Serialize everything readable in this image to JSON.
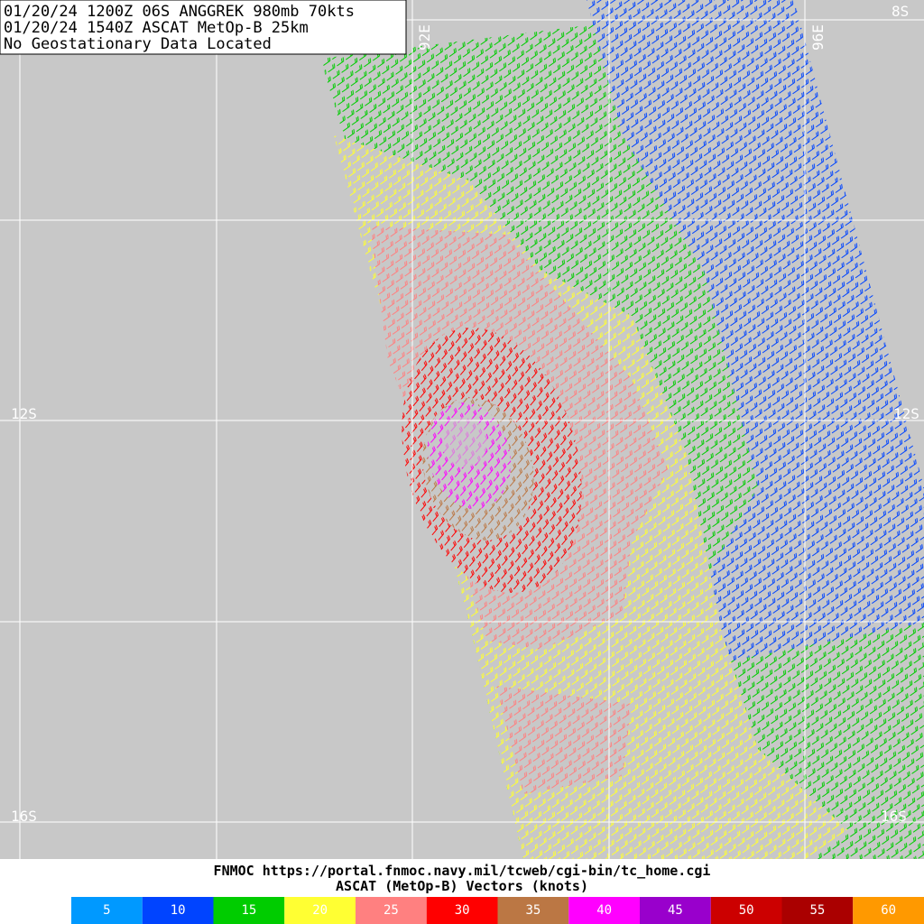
{
  "header": {
    "line1": "01/20/24 1200Z  06S ANGGREK 980mb 70kts",
    "line2": "01/20/24 1540Z  ASCAT MetOp-B 25km",
    "line3": "No Geostationary Data Located"
  },
  "grid_labels": {
    "lat_top": "8S",
    "lat_mid": "12S",
    "lat_mid_right": "12S",
    "lat_bottom": "16S",
    "lat_bottom_right": "16S",
    "lon_right": "96E",
    "lon_left": "92E"
  },
  "footer": {
    "source": "FNMOC https://portal.fnmoc.navy.mil/tcweb/cgi-bin/tc_home.cgi",
    "caption": "ASCAT (MetOp-B) Vectors (knots)"
  },
  "legend": [
    {
      "label": 5,
      "color": "#0099ff"
    },
    {
      "label": 10,
      "color": "#0044ff"
    },
    {
      "label": 15,
      "color": "#00cc00"
    },
    {
      "label": 20,
      "color": "#ffff33"
    },
    {
      "label": 25,
      "color": "#ff8080"
    },
    {
      "label": 30,
      "color": "#ff0000"
    },
    {
      "label": 35,
      "color": "#bb7744"
    },
    {
      "label": 40,
      "color": "#ff00ff"
    },
    {
      "label": 45,
      "color": "#9900cc"
    },
    {
      "label": 50,
      "color": "#cc0000"
    },
    {
      "label": 55,
      "color": "#aa0000"
    },
    {
      "label": 60,
      "color": "#ff9900"
    }
  ]
}
